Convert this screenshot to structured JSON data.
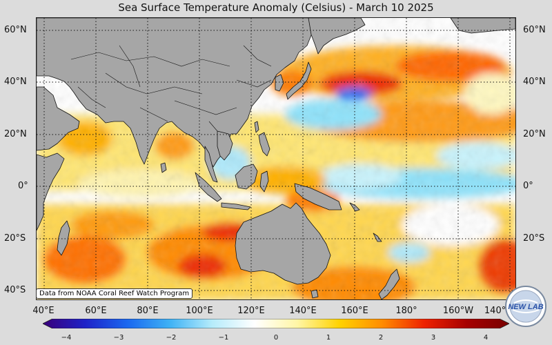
{
  "title": "Sea Surface Temperature Anomaly (Celsius) - March 10 2025",
  "latitude_labels": [
    "60°N",
    "40°N",
    "20°N",
    "0°",
    "20°S",
    "40°S"
  ],
  "longitude_labels": [
    "40°E",
    "60°E",
    "80°E",
    "100°E",
    "120°E",
    "140°E",
    "160°E",
    "180°",
    "160°W",
    "140°W"
  ],
  "credit": "Data from NOAA Coral Reef Watch Program",
  "logo_text": "NEW LAB",
  "colorbar": {
    "ticks": [
      "−4",
      "−3",
      "−2",
      "−1",
      "0",
      "1",
      "2",
      "3",
      "4"
    ],
    "colors": [
      "#3a007a",
      "#1e22c8",
      "#1a68f0",
      "#3fb2f5",
      "#b6ecfb",
      "#ffffff",
      "#fff6a6",
      "#ffd200",
      "#ff8c00",
      "#ee2200",
      "#a60000",
      "#780000"
    ]
  },
  "colors": {
    "land": "#a6a6a6",
    "coastline": "#111111",
    "neutral_ocean": "#ffffff",
    "warm_anomaly": "#ff8c00",
    "cold_anomaly": "#69d3f5",
    "sea_ice": "#e6e6e6"
  }
}
